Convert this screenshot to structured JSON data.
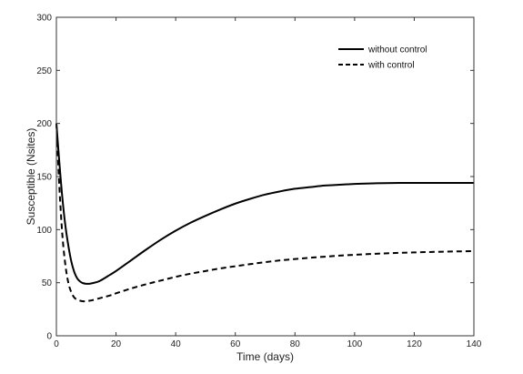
{
  "chart_data": {
    "type": "line",
    "title": "",
    "xlabel": "Time (days)",
    "ylabel": "Susceptible (Nsites)",
    "xlim": [
      0,
      140
    ],
    "ylim": [
      0,
      300
    ],
    "xticks": [
      0,
      20,
      40,
      60,
      80,
      100,
      120,
      140
    ],
    "yticks": [
      0,
      50,
      100,
      150,
      200,
      250,
      300
    ],
    "grid": false,
    "legend": {
      "position": "top-right"
    },
    "series": [
      {
        "name": "without control",
        "line_style": "solid",
        "color": "#000000",
        "x": [
          0,
          1,
          2,
          3,
          4,
          5,
          6,
          7,
          8,
          9,
          10,
          11,
          12,
          14,
          16,
          18,
          20,
          25,
          30,
          35,
          40,
          45,
          50,
          55,
          60,
          65,
          70,
          75,
          80,
          85,
          90,
          95,
          100,
          105,
          110,
          115,
          120,
          125,
          130,
          135,
          140
        ],
        "y": [
          200,
          163,
          130,
          104,
          85,
          70,
          60,
          54,
          51,
          49.5,
          49,
          49,
          49.5,
          51,
          54,
          57.5,
          61,
          71,
          81,
          90.5,
          99,
          106.5,
          113,
          119,
          124.5,
          129,
          133,
          136,
          138.5,
          140,
          141.5,
          142.3,
          143,
          143.5,
          143.8,
          144,
          144,
          144,
          144,
          144,
          144
        ]
      },
      {
        "name": "with control",
        "line_style": "dashed",
        "color": "#000000",
        "x": [
          0,
          1,
          2,
          3,
          4,
          5,
          6,
          7,
          8,
          9,
          10,
          11,
          12,
          14,
          16,
          18,
          20,
          25,
          30,
          35,
          40,
          45,
          50,
          55,
          60,
          65,
          70,
          75,
          80,
          85,
          90,
          95,
          100,
          105,
          110,
          115,
          120,
          125,
          130,
          135,
          140
        ],
        "y": [
          200,
          140,
          95,
          67,
          50,
          41,
          36,
          34,
          33,
          32.5,
          32.5,
          33,
          33.5,
          35,
          36.5,
          38,
          40,
          44.5,
          48.5,
          52,
          55.5,
          58.5,
          61,
          63.5,
          65.5,
          67.5,
          69.3,
          71,
          72.3,
          73.5,
          74.5,
          75.5,
          76.3,
          77,
          77.6,
          78.1,
          78.5,
          78.9,
          79.2,
          79.5,
          79.7
        ]
      }
    ]
  }
}
